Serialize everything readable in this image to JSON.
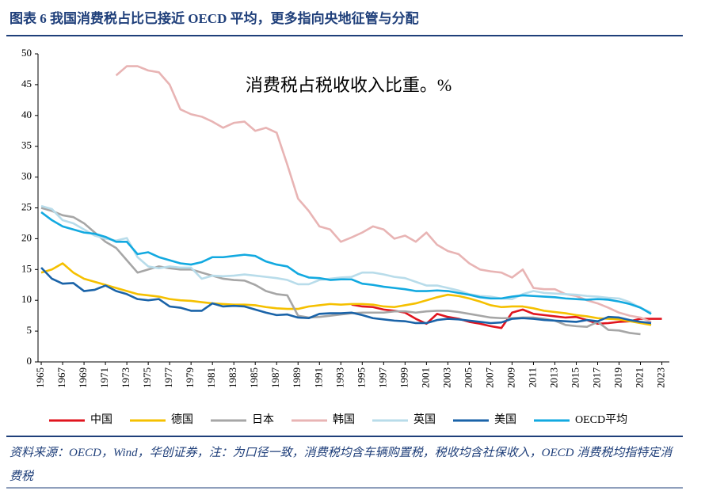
{
  "chart_data": {
    "type": "line",
    "title": "图表 6   我国消费税占比已接近 OECD 平均，更多指向央地征管与分配",
    "annotation": "消费税占税收收入比重。%",
    "source": "资料来源：OECD，Wind，华创证券，注：为口径一致，消费税均含车辆购置税，税收均含社保收入，OECD 消费税均指特定消费税",
    "x": [
      1965,
      1966,
      1967,
      1968,
      1969,
      1970,
      1971,
      1972,
      1973,
      1974,
      1975,
      1976,
      1977,
      1978,
      1979,
      1980,
      1981,
      1982,
      1983,
      1984,
      1985,
      1986,
      1987,
      1988,
      1989,
      1990,
      1991,
      1992,
      1993,
      1994,
      1995,
      1996,
      1997,
      1998,
      1999,
      2000,
      2001,
      2002,
      2003,
      2004,
      2005,
      2006,
      2007,
      2008,
      2009,
      2010,
      2011,
      2012,
      2013,
      2014,
      2015,
      2016,
      2017,
      2018,
      2019,
      2020,
      2021,
      2022,
      2023
    ],
    "xlim": [
      1964.7,
      2023.7
    ],
    "xticks": [
      1965,
      1967,
      1969,
      1971,
      1973,
      1975,
      1977,
      1979,
      1981,
      1983,
      1985,
      1987,
      1989,
      1991,
      1993,
      1995,
      1997,
      1999,
      2001,
      2003,
      2005,
      2007,
      2009,
      2011,
      2013,
      2015,
      2017,
      2019,
      2021,
      2023
    ],
    "ylim": [
      0,
      50
    ],
    "yticks": [
      0,
      5,
      10,
      15,
      20,
      25,
      30,
      35,
      40,
      45,
      50
    ],
    "grid": false,
    "legend": "bottom",
    "series": [
      {
        "name": "中国",
        "color": "#e0141e",
        "values": [
          null,
          null,
          null,
          null,
          null,
          null,
          null,
          null,
          null,
          null,
          null,
          null,
          null,
          null,
          null,
          null,
          null,
          null,
          null,
          null,
          null,
          null,
          null,
          null,
          null,
          null,
          null,
          null,
          null,
          9.3,
          9,
          8.9,
          8.5,
          8.3,
          8,
          7,
          6.2,
          7.8,
          7.3,
          7,
          6.5,
          6.2,
          5.8,
          5.5,
          8,
          8.5,
          7.8,
          7.6,
          7.4,
          7.2,
          7.3,
          6.8,
          6.2,
          6.3,
          6.5,
          6.6,
          7,
          7,
          7
        ]
      },
      {
        "name": "德国",
        "color": "#f5c000",
        "values": [
          14.5,
          15,
          16,
          14.5,
          13.5,
          13,
          12.5,
          12,
          11.5,
          11,
          10.8,
          10.6,
          10.2,
          10,
          9.9,
          9.7,
          9.5,
          9.4,
          9.3,
          9.3,
          9.2,
          8.9,
          8.7,
          8.6,
          8.6,
          9,
          9.2,
          9.4,
          9.3,
          9.4,
          9.4,
          9.3,
          9,
          8.9,
          9.2,
          9.5,
          10,
          10.5,
          10.9,
          10.7,
          10.3,
          9.8,
          9.2,
          8.9,
          9,
          9,
          8.7,
          8.3,
          8.1,
          7.9,
          7.6,
          7.4,
          7.1,
          7,
          6.9,
          6.6,
          6.3,
          6,
          null
        ]
      },
      {
        "name": "日本",
        "color": "#a6a6a6",
        "values": [
          25,
          24.5,
          23.8,
          23.5,
          22.5,
          21,
          19.5,
          18.5,
          16.5,
          14.5,
          15,
          15.5,
          15.2,
          15,
          15,
          14.5,
          14,
          13.5,
          13.3,
          13.2,
          12.5,
          11.5,
          11,
          10.8,
          7.5,
          7.2,
          7.3,
          7.5,
          7.7,
          7.9,
          8,
          8,
          8,
          8.2,
          8.2,
          8,
          8.2,
          8.3,
          8.3,
          8.1,
          7.8,
          7.5,
          7.2,
          7.1,
          7.1,
          7.2,
          7.2,
          7,
          6.7,
          6,
          5.8,
          5.7,
          6.5,
          5.2,
          5.1,
          4.7,
          4.5,
          null,
          null
        ]
      },
      {
        "name": "韩国",
        "color": "#e8b4b4",
        "values": [
          null,
          null,
          null,
          null,
          null,
          null,
          null,
          46.5,
          48,
          48,
          47.3,
          47,
          45,
          41,
          40.2,
          39.8,
          39,
          38,
          38.8,
          39,
          37.5,
          38,
          37.2,
          32,
          26.5,
          24.5,
          22,
          21.5,
          19.5,
          20.2,
          21,
          22,
          21.5,
          20,
          20.5,
          19.5,
          21,
          19,
          18,
          17.5,
          16,
          15,
          14.7,
          14.5,
          13.7,
          15,
          12,
          11.8,
          11.8,
          11,
          10.7,
          10,
          9.5,
          8.8,
          8,
          7.5,
          7.2,
          6.5,
          null
        ]
      },
      {
        "name": "英国",
        "color": "#b8dcea",
        "values": [
          25.3,
          24.8,
          23,
          22.5,
          21.5,
          20.5,
          20,
          19.7,
          20.1,
          17,
          15.5,
          15.2,
          15.5,
          15.3,
          15.3,
          13.5,
          14,
          13.9,
          14,
          14.2,
          14,
          13.8,
          13.6,
          13.3,
          12.6,
          12.6,
          13.3,
          13.5,
          13.7,
          13.8,
          14.5,
          14.5,
          14.2,
          13.8,
          13.6,
          13,
          12.4,
          12.4,
          12,
          11.6,
          11,
          10.7,
          10.6,
          10.3,
          10.2,
          11,
          11.5,
          11.2,
          11.1,
          11,
          10.9,
          10.7,
          10.6,
          10.4,
          10.3,
          9.7,
          8.8,
          8,
          null
        ]
      },
      {
        "name": "美国",
        "color": "#1a63a8",
        "values": [
          15.3,
          13.5,
          12.7,
          12.8,
          11.5,
          11.7,
          12.4,
          11.5,
          11,
          10.2,
          10,
          10.2,
          9,
          8.8,
          8.3,
          8.3,
          9.5,
          9,
          9.1,
          9,
          8.5,
          8,
          7.6,
          7.7,
          7.2,
          7.1,
          7.8,
          7.9,
          7.9,
          8,
          7.6,
          7.1,
          6.9,
          6.7,
          6.6,
          6.3,
          6.3,
          6.8,
          7,
          6.9,
          6.7,
          6.5,
          6.3,
          6.4,
          7,
          7.1,
          7,
          6.8,
          6.7,
          6.6,
          6.5,
          6.8,
          6.6,
          7.3,
          7.2,
          6.8,
          6.5,
          6.3,
          null
        ]
      },
      {
        "name": "OECD平均",
        "color": "#12a9e0",
        "values": [
          24.3,
          23,
          22,
          21.5,
          21,
          20.8,
          20.3,
          19.5,
          19.5,
          17.5,
          17.8,
          17,
          16.5,
          16,
          15.8,
          16.2,
          17,
          17,
          17.2,
          17.4,
          17.2,
          16.3,
          15.8,
          15.5,
          14.3,
          13.7,
          13.6,
          13.3,
          13.4,
          13.4,
          12.7,
          12.5,
          12.2,
          12,
          11.8,
          11.5,
          11.5,
          11.6,
          11.5,
          11.2,
          10.9,
          10.5,
          10.3,
          10.3,
          10.6,
          10.8,
          10.7,
          10.6,
          10.5,
          10.3,
          10.2,
          10.1,
          10.2,
          10.1,
          9.8,
          9.4,
          8.8,
          7.8,
          null
        ]
      }
    ]
  }
}
